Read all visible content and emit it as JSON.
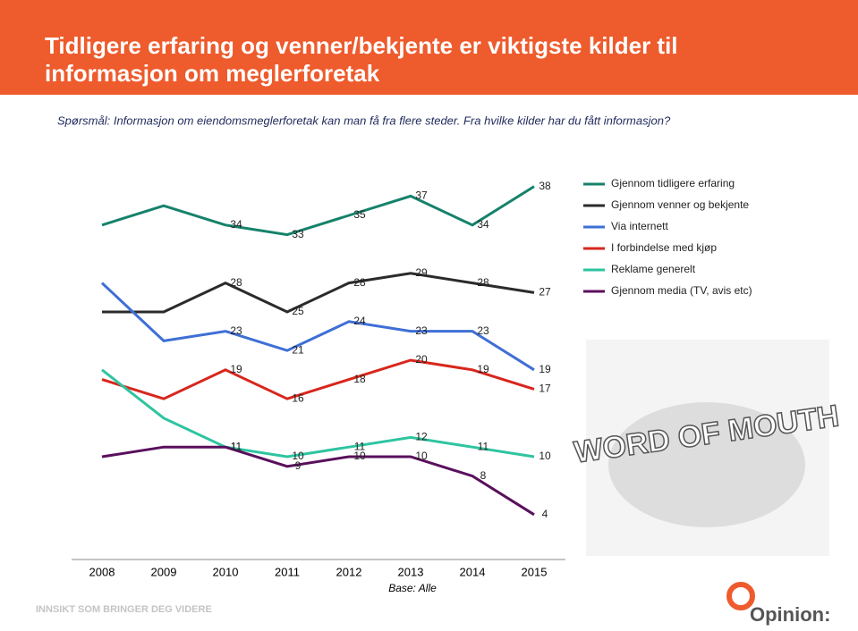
{
  "header": {
    "title": [
      "Tidligere erfaring og venner/bekjente er viktigste kilder til",
      "informasjon om meglerforetak"
    ],
    "question": "Spørsmål: Informasjon om eiendomsmeglerforetak kan man få fra flere steder. Fra hvilke kilder har du fått informasjon?"
  },
  "chart_data": {
    "type": "line",
    "categories": [
      "2008",
      "2009",
      "2010",
      "2011",
      "2012",
      "2013",
      "2014",
      "2015"
    ],
    "ylim": [
      0,
      40
    ],
    "legend": "right",
    "note": "Base: Alle",
    "series": [
      {
        "name": "Gjennom tidligere erfaring",
        "color": "#16826b",
        "values": [
          34,
          36,
          34,
          33,
          35,
          37,
          34,
          38
        ],
        "value_labels": [
          null,
          null,
          "34",
          "33",
          "35",
          "37",
          "34",
          "38"
        ]
      },
      {
        "name": "Gjennom venner og bekjente",
        "color": "#2b2b2b",
        "values": [
          25,
          25,
          28,
          25,
          28,
          29,
          28,
          27
        ],
        "value_labels": [
          null,
          null,
          "28",
          "25",
          "28",
          "29",
          "28",
          "27"
        ]
      },
      {
        "name": "Via internett",
        "color": "#3e6fd6",
        "values": [
          28,
          22,
          23,
          21,
          24,
          23,
          23,
          19
        ],
        "value_labels": [
          null,
          null,
          "23",
          "21",
          "24",
          "23",
          "23",
          "19"
        ]
      },
      {
        "name": "I forbindelse med kjøp",
        "color": "#d8261c",
        "values": [
          18,
          16,
          19,
          16,
          18,
          20,
          19,
          17
        ],
        "value_labels": [
          null,
          null,
          "19",
          "16",
          "18",
          "20",
          "19",
          "17"
        ]
      },
      {
        "name": "Reklame generelt",
        "color": "#2ec4a0",
        "values": [
          19,
          14,
          11,
          10,
          11,
          12,
          11,
          10
        ],
        "value_labels": [
          null,
          null,
          "11",
          "10",
          "11",
          "12",
          "11",
          "10"
        ]
      },
      {
        "name": "Gjennom media (TV, avis etc)",
        "color": "#5a0f5c",
        "values": [
          10,
          11,
          11,
          9,
          10,
          10,
          8,
          4
        ],
        "value_labels": [
          null,
          null,
          "11",
          "9",
          "10",
          "10",
          "8",
          "4"
        ]
      }
    ]
  },
  "illustration": "WORD OF MOUTH",
  "footer": {
    "slogan": "INNSIKT SOM BRINGER DEG VIDERE",
    "logo": "Opinion:"
  }
}
